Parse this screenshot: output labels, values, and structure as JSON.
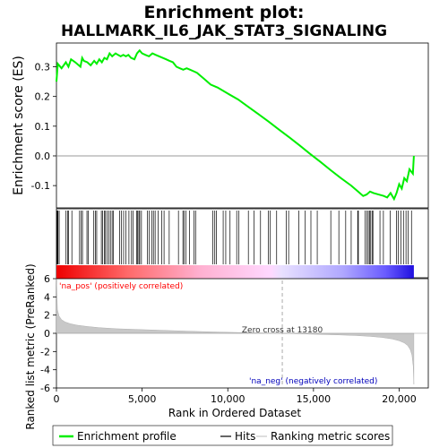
{
  "title_line1": "Enrichment plot:",
  "title_line2": "HALLMARK_IL6_JAK_STAT3_SIGNALING",
  "colors": {
    "es_line": "#00ee00",
    "hits": "#000000",
    "metric_fill": "#c8c8c8",
    "zero_line": "#999999",
    "pos_label": "#ff0000",
    "neg_label": "#0000bb"
  },
  "chart_data": [
    {
      "type": "line",
      "name": "enrichment-profile",
      "ylabel": "Enrichment score (ES)",
      "xlim": [
        0,
        21700
      ],
      "ylim": [
        -0.175,
        0.38
      ],
      "yticks": [
        -0.1,
        0.0,
        0.1,
        0.2,
        0.3
      ],
      "ytick_labels": [
        "-0.1",
        "0.0",
        "0.1",
        "0.2",
        "0.3"
      ],
      "grid": false,
      "x": [
        0,
        80,
        300,
        550,
        700,
        850,
        1100,
        1400,
        1500,
        1600,
        1800,
        2000,
        2200,
        2350,
        2500,
        2650,
        2800,
        2950,
        3100,
        3250,
        3450,
        3600,
        3750,
        3900,
        4050,
        4200,
        4350,
        4550,
        4700,
        4850,
        5000,
        5200,
        5400,
        5600,
        5800,
        6000,
        6200,
        6400,
        6600,
        6800,
        7000,
        7200,
        7400,
        7600,
        7800,
        8000,
        8200,
        8600,
        9000,
        9400,
        10000,
        10600,
        11200,
        11800,
        12400,
        13000,
        13600,
        14200,
        14800,
        15400,
        16000,
        16600,
        17200,
        17600,
        17900,
        18100,
        18300,
        18500,
        18800,
        19100,
        19300,
        19500,
        19700,
        19850,
        20000,
        20150,
        20300,
        20450,
        20600,
        20800,
        20860
      ],
      "y": [
        0.25,
        0.31,
        0.295,
        0.315,
        0.3,
        0.325,
        0.315,
        0.3,
        0.33,
        0.32,
        0.315,
        0.305,
        0.32,
        0.31,
        0.325,
        0.315,
        0.33,
        0.325,
        0.345,
        0.335,
        0.345,
        0.34,
        0.335,
        0.34,
        0.335,
        0.34,
        0.33,
        0.325,
        0.345,
        0.355,
        0.345,
        0.34,
        0.335,
        0.345,
        0.34,
        0.335,
        0.33,
        0.325,
        0.32,
        0.315,
        0.3,
        0.295,
        0.29,
        0.295,
        0.29,
        0.285,
        0.28,
        0.26,
        0.24,
        0.23,
        0.21,
        0.19,
        0.165,
        0.14,
        0.115,
        0.088,
        0.062,
        0.035,
        0.007,
        -0.02,
        -0.048,
        -0.075,
        -0.1,
        -0.12,
        -0.135,
        -0.13,
        -0.12,
        -0.125,
        -0.13,
        -0.135,
        -0.14,
        -0.125,
        -0.145,
        -0.125,
        -0.095,
        -0.11,
        -0.075,
        -0.085,
        -0.045,
        -0.06,
        0.0
      ]
    },
    {
      "type": "scatter",
      "name": "hits",
      "x": [
        30,
        60,
        90,
        160,
        560,
        650,
        700,
        900,
        1350,
        1450,
        1520,
        1780,
        1860,
        2180,
        2280,
        2350,
        2620,
        2700,
        2800,
        2860,
        2950,
        3050,
        3150,
        3250,
        3320,
        3680,
        3800,
        3920,
        4050,
        4230,
        4380,
        4480,
        4680,
        4740,
        4810,
        4860,
        4960,
        5300,
        5420,
        5560,
        5660,
        5760,
        5940,
        6140,
        6280,
        6580,
        7120,
        7380,
        7440,
        7560,
        7760,
        8020,
        8120,
        9130,
        9240,
        9330,
        9730,
        9880,
        10130,
        10520,
        10650,
        11200,
        11530,
        11910,
        12360,
        12480,
        12850,
        13420,
        13550,
        14150,
        14520,
        14850,
        15220,
        16010,
        16480,
        16880,
        17200,
        17580,
        17620,
        18020,
        18120,
        18200,
        18280,
        18340,
        18420,
        18470,
        18880,
        19080,
        19480,
        19850,
        19940,
        20110,
        20250,
        20400,
        20530,
        20720
      ]
    },
    {
      "type": "area",
      "name": "ranked-list-metric",
      "ylabel": "Ranked list metric (PreRanked)",
      "xlabel": "Rank in Ordered Dataset",
      "xlim": [
        0,
        21700
      ],
      "ylim": [
        -6,
        6
      ],
      "yticks": [
        -6,
        -4,
        -2,
        0,
        2,
        4,
        6
      ],
      "ytick_labels": [
        "-6",
        "-4",
        "-2",
        "0",
        "2",
        "4",
        "6"
      ],
      "xticks": [
        0,
        5000,
        10000,
        15000,
        20000
      ],
      "xtick_labels": [
        "0",
        "5,000",
        "10,000",
        "15,000",
        "20,000"
      ],
      "x": [
        0,
        60,
        150,
        300,
        500,
        800,
        1200,
        1800,
        2500,
        3500,
        5000,
        7000,
        9000,
        11000,
        13180,
        15000,
        16500,
        17500,
        18300,
        19000,
        19600,
        20000,
        20300,
        20500,
        20650,
        20750,
        20820,
        20860
      ],
      "y": [
        6.5,
        2.6,
        1.9,
        1.5,
        1.25,
        1.05,
        0.9,
        0.75,
        0.62,
        0.5,
        0.4,
        0.28,
        0.16,
        0.07,
        0.0,
        -0.1,
        -0.18,
        -0.25,
        -0.33,
        -0.45,
        -0.62,
        -0.82,
        -1.05,
        -1.35,
        -1.8,
        -2.4,
        -3.6,
        -5.6
      ],
      "zero_cross_label": "Zero cross at 13180",
      "zero_cross_x": 13180,
      "pos_label": "'na_pos' (positively correlated)",
      "neg_label": "'na_neg' (negatively correlated)"
    }
  ],
  "legend": {
    "placement": "bottom",
    "entries": [
      {
        "label": "Enrichment profile",
        "color": "#00ee00"
      },
      {
        "label": "Hits",
        "color": "#000000"
      },
      {
        "label": "Ranking metric scores",
        "color": "#c8c8c8"
      }
    ]
  }
}
